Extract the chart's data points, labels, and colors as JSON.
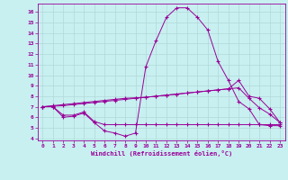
{
  "xlabel": "Windchill (Refroidissement éolien,°C)",
  "bg_color": "#c8f0f0",
  "line_color": "#990099",
  "grid_color": "#b0d8d8",
  "xlim": [
    -0.5,
    23.5
  ],
  "ylim": [
    3.8,
    16.8
  ],
  "xticks": [
    0,
    1,
    2,
    3,
    4,
    5,
    6,
    7,
    8,
    9,
    10,
    11,
    12,
    13,
    14,
    15,
    16,
    17,
    18,
    19,
    20,
    21,
    22,
    23
  ],
  "yticks": [
    4,
    5,
    6,
    7,
    8,
    9,
    10,
    11,
    12,
    13,
    14,
    15,
    16
  ],
  "line1_x": [
    0,
    1,
    2,
    3,
    4,
    5,
    6,
    7,
    8,
    9,
    10,
    11,
    12,
    13,
    14,
    15,
    16,
    17,
    18,
    19,
    20,
    21,
    22,
    23
  ],
  "line1_y": [
    7.0,
    7.0,
    6.0,
    6.1,
    6.4,
    5.5,
    4.7,
    4.5,
    4.2,
    4.5,
    10.8,
    13.3,
    15.5,
    16.4,
    16.4,
    15.5,
    14.3,
    11.3,
    9.5,
    7.5,
    6.8,
    5.3,
    5.2,
    5.2
  ],
  "line2_x": [
    0,
    1,
    2,
    3,
    4,
    5,
    6,
    7,
    8,
    9,
    10,
    11,
    12,
    13,
    14,
    15,
    16,
    17,
    18,
    19,
    20,
    21,
    22,
    23
  ],
  "line2_y": [
    7.0,
    7.0,
    6.2,
    6.2,
    6.5,
    5.6,
    5.3,
    5.3,
    5.3,
    5.3,
    5.3,
    5.3,
    5.3,
    5.3,
    5.3,
    5.3,
    5.3,
    5.3,
    5.3,
    5.3,
    5.3,
    5.3,
    5.3,
    5.3
  ],
  "line3_x": [
    0,
    1,
    2,
    3,
    4,
    5,
    6,
    7,
    8,
    9,
    10,
    11,
    12,
    13,
    14,
    15,
    16,
    17,
    18,
    19,
    20,
    21,
    22,
    23
  ],
  "line3_y": [
    7.0,
    7.1,
    7.2,
    7.3,
    7.4,
    7.5,
    7.6,
    7.7,
    7.8,
    7.85,
    7.9,
    8.0,
    8.1,
    8.2,
    8.3,
    8.4,
    8.5,
    8.6,
    8.7,
    9.5,
    8.0,
    7.8,
    6.8,
    5.5
  ],
  "line4_x": [
    0,
    1,
    2,
    3,
    4,
    5,
    6,
    7,
    8,
    9,
    10,
    11,
    12,
    13,
    14,
    15,
    16,
    17,
    18,
    19,
    20,
    21,
    22,
    23
  ],
  "line4_y": [
    7.0,
    7.05,
    7.1,
    7.2,
    7.3,
    7.4,
    7.5,
    7.6,
    7.7,
    7.8,
    7.9,
    8.0,
    8.1,
    8.2,
    8.3,
    8.4,
    8.5,
    8.6,
    8.7,
    8.8,
    7.8,
    6.9,
    6.3,
    5.5
  ]
}
